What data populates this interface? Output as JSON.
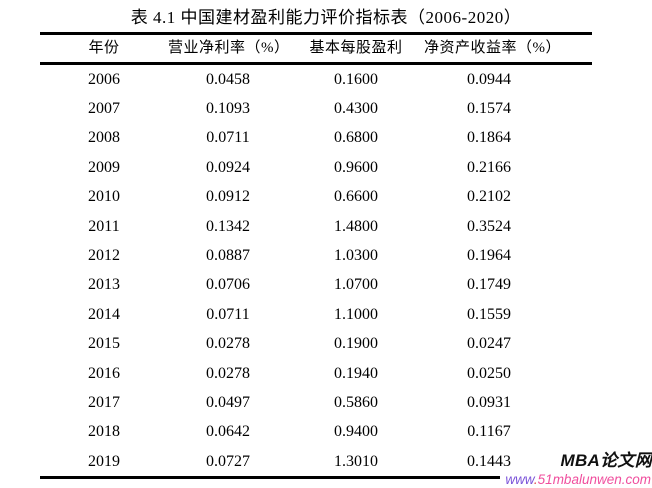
{
  "page": {
    "background": "#ffffff",
    "text_color": "#000000"
  },
  "title": "表 4.1 中国建材盈利能力评价指标表（2006-2020）",
  "table": {
    "headers": [
      "年份",
      "营业净利率（%）",
      "基本每股盈利",
      "净资产收益率（%）"
    ],
    "rows": [
      [
        "2006",
        "0.0458",
        "0.1600",
        "0.0944"
      ],
      [
        "2007",
        "0.1093",
        "0.4300",
        "0.1574"
      ],
      [
        "2008",
        "0.0711",
        "0.6800",
        "0.1864"
      ],
      [
        "2009",
        "0.0924",
        "0.9600",
        "0.2166"
      ],
      [
        "2010",
        "0.0912",
        "0.6600",
        "0.2102"
      ],
      [
        "2011",
        "0.1342",
        "1.4800",
        "0.3524"
      ],
      [
        "2012",
        "0.0887",
        "1.0300",
        "0.1964"
      ],
      [
        "2013",
        "0.0706",
        "1.0700",
        "0.1749"
      ],
      [
        "2014",
        "0.0711",
        "1.1000",
        "0.1559"
      ],
      [
        "2015",
        "0.0278",
        "0.1900",
        "0.0247"
      ],
      [
        "2016",
        "0.0278",
        "0.1940",
        "0.0250"
      ],
      [
        "2017",
        "0.0497",
        "0.5860",
        "0.0931"
      ],
      [
        "2018",
        "0.0642",
        "0.9400",
        "0.1167"
      ],
      [
        "2019",
        "0.0727",
        "1.3010",
        "0.1443"
      ]
    ],
    "rule_color": "#000000"
  },
  "watermark": {
    "site_name": "MBA论文网",
    "url_www": "www",
    "url_dot": ".",
    "url_domain": "51mbalunwen.com",
    "colors": {
      "site_name": "#111111",
      "url_www": "#7a52d9",
      "url_dot": "#e04545",
      "url_domain": "#f04f9e"
    }
  }
}
